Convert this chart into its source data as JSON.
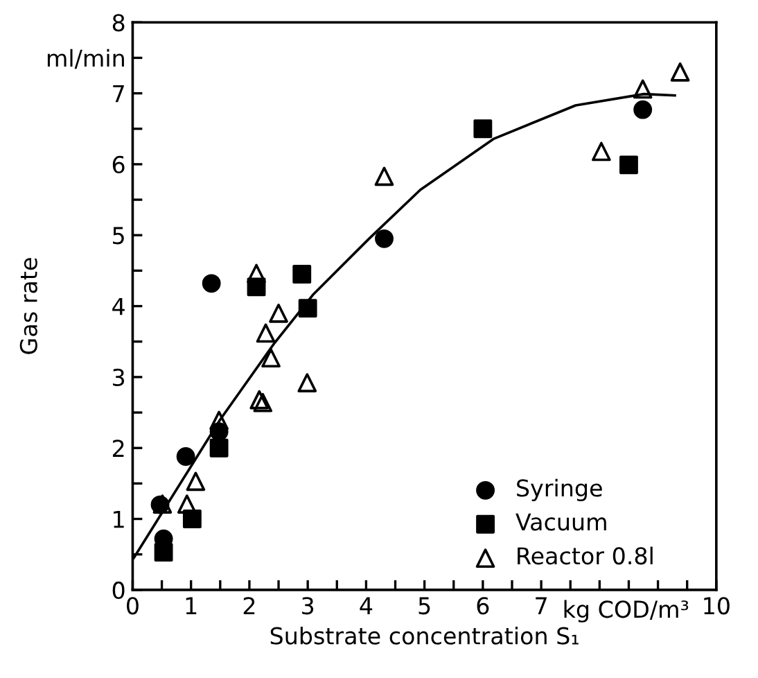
{
  "chart_data": {
    "type": "scatter",
    "xlabel": "Substrate concentration S₁",
    "ylabel": "Gas rate",
    "xlim": [
      0,
      10
    ],
    "ylim": [
      0,
      8
    ],
    "xticks": [
      0,
      {
        "value": 0.5,
        "label": null
      },
      1,
      {
        "value": 1.5,
        "label": null
      },
      2,
      {
        "value": 2.5,
        "label": null
      },
      3,
      {
        "value": 3.5,
        "label": null
      },
      4,
      {
        "value": 4.5,
        "label": null
      },
      5,
      {
        "value": 5.5,
        "label": null
      },
      6,
      {
        "value": 6.5,
        "label": null
      },
      7,
      {
        "value": 7.5,
        "label": null
      },
      {
        "value": 8,
        "label": null
      },
      {
        "value": 8.5,
        "label": null
      },
      {
        "value": 9,
        "label": null
      },
      {
        "value": 9.5,
        "label": null
      },
      10
    ],
    "yticks": [
      0,
      {
        "value": 0.5,
        "label": null
      },
      1,
      {
        "value": 1.5,
        "label": null
      },
      2,
      {
        "value": 2.5,
        "label": null
      },
      3,
      {
        "value": 3.5,
        "label": null
      },
      4,
      {
        "value": 4.5,
        "label": null
      },
      5,
      {
        "value": 5.5,
        "label": null
      },
      6,
      {
        "value": 6.5,
        "label": null
      },
      7,
      {
        "value": 7.5,
        "label": "ml/min"
      },
      8
    ],
    "annotations": [
      "kg COD/m³"
    ],
    "grid": false,
    "legend": "bottom right",
    "series": [
      {
        "name": "Syringe",
        "color": "#000000",
        "marker": "circle",
        "x": [
          1.35,
          4.31,
          8.74,
          1.48,
          0.91,
          0.47,
          0.53
        ],
        "values": [
          4.32,
          4.95,
          6.77,
          2.23,
          1.88,
          1.2,
          0.72
        ]
      },
      {
        "name": "Vacuum",
        "color": "#000000",
        "marker": "square",
        "x": [
          2.12,
          2.9,
          3.0,
          6.0,
          8.5,
          1.48,
          1.02,
          0.53
        ],
        "values": [
          4.27,
          4.45,
          3.97,
          6.5,
          5.99,
          2.0,
          1.0,
          0.53
        ]
      },
      {
        "name": "Reactor 0.8l",
        "color": "#000000",
        "marker": "triangle",
        "x": [
          2.12,
          2.5,
          2.28,
          4.31,
          8.74,
          9.38,
          8.03,
          2.37,
          2.99,
          2.17,
          2.23,
          1.48,
          1.08,
          0.93,
          0.51
        ],
        "values": [
          4.46,
          3.9,
          3.62,
          5.83,
          7.06,
          7.3,
          6.18,
          3.27,
          2.92,
          2.68,
          2.64,
          2.39,
          1.53,
          1.21,
          1.21
        ]
      },
      {
        "type": "line",
        "color": "#000000",
        "marker": "none",
        "x": [
          0.02,
          1.5,
          2.43,
          3.1,
          4.05,
          4.93,
          6.19,
          7.59,
          8.76,
          9.29
        ],
        "values": [
          0.45,
          2.4,
          3.48,
          4.17,
          4.95,
          5.64,
          6.36,
          6.83,
          6.99,
          6.97
        ]
      }
    ]
  }
}
